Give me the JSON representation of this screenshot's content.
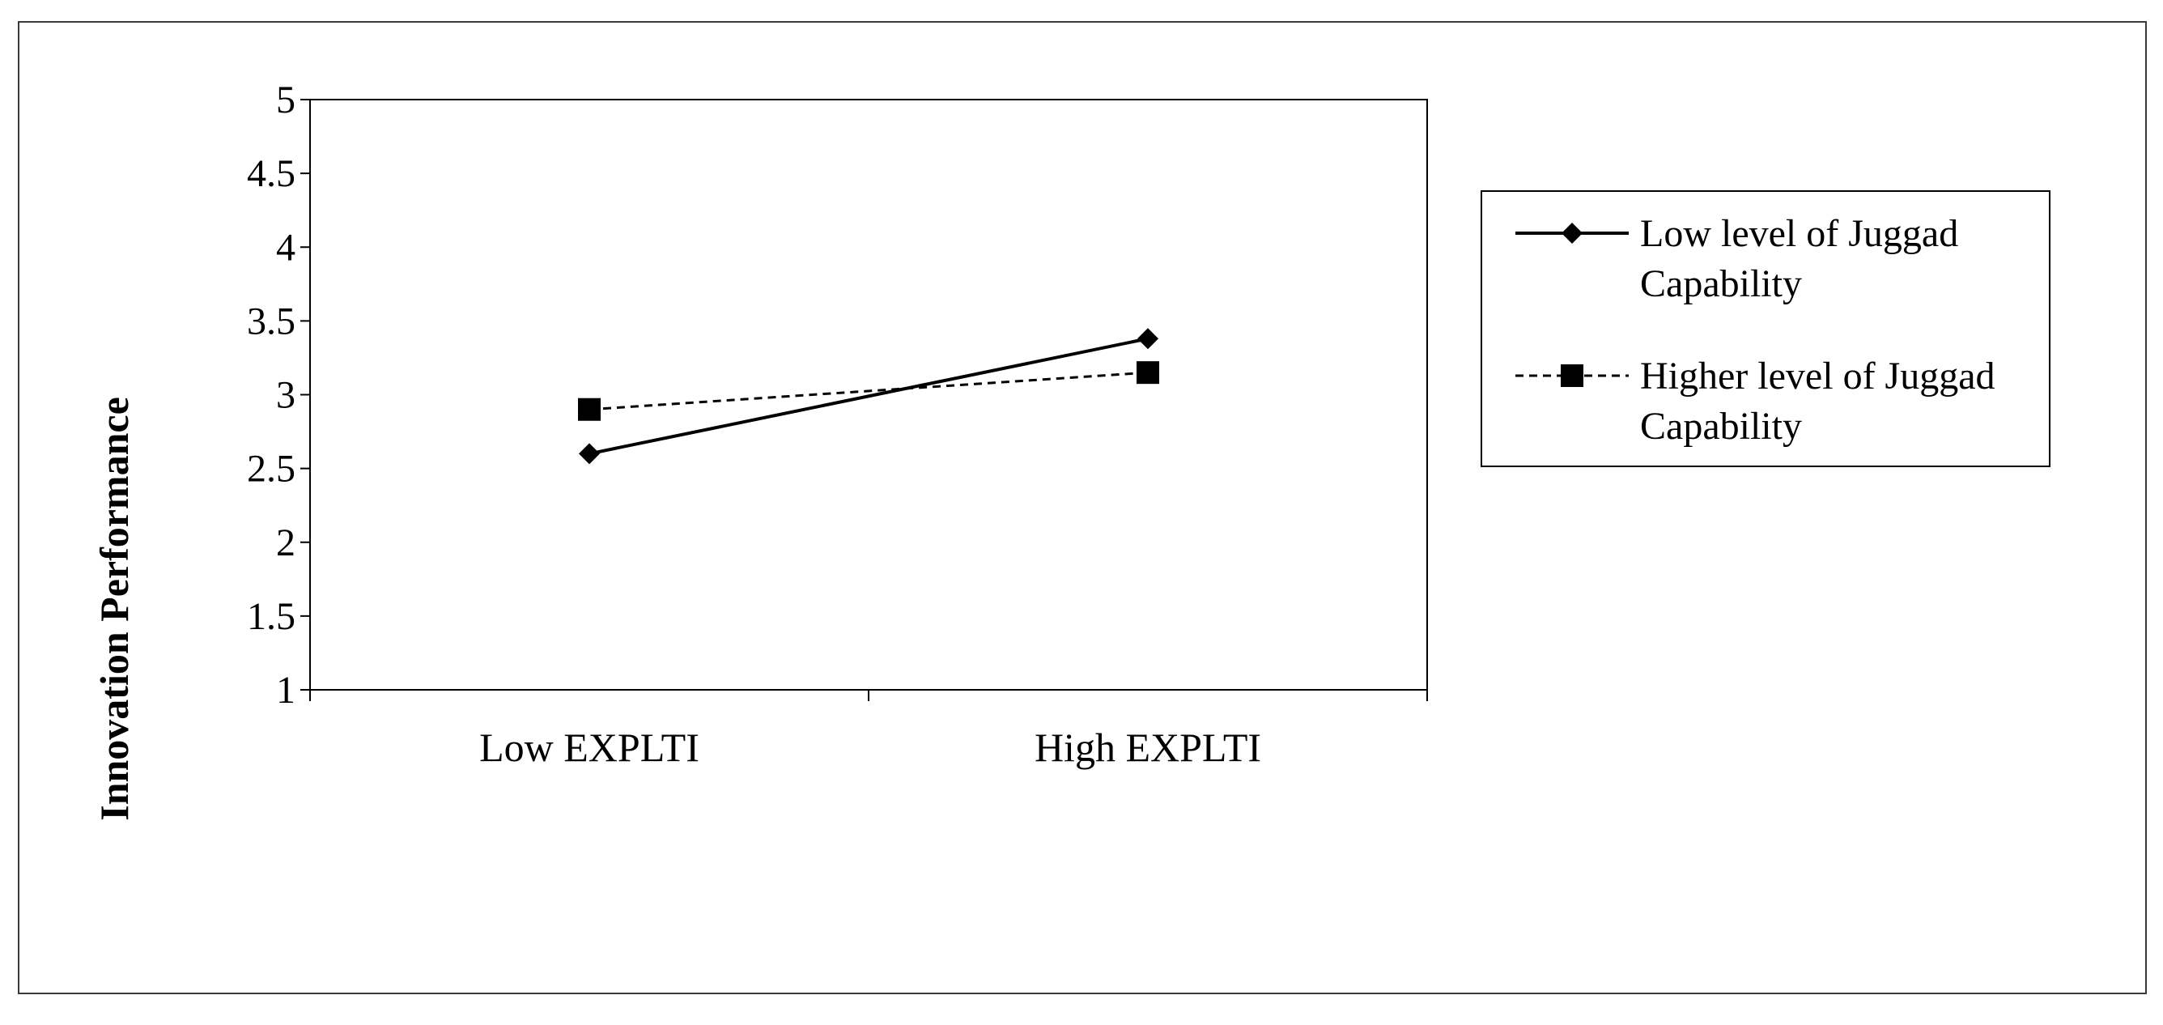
{
  "chart_data": {
    "type": "line",
    "title": "",
    "xlabel": "",
    "ylabel": "Innovation  Performance",
    "categories": [
      "Low EXPLTI",
      "High EXPLTI"
    ],
    "ylim": [
      1,
      5
    ],
    "yticks": [
      "1",
      "1.5",
      "2",
      "2.5",
      "3",
      "3.5",
      "4",
      "4.5",
      "5"
    ],
    "grid": false,
    "legend_position": "right",
    "series": [
      {
        "name_lines": [
          "Low level of Juggad",
          "Capability"
        ],
        "values": [
          2.6,
          3.38
        ],
        "marker": "diamond",
        "line_style": "solid",
        "color": "#000000"
      },
      {
        "name_lines": [
          "Higher level of Juggad",
          "Capability"
        ],
        "values": [
          2.9,
          3.15
        ],
        "marker": "square",
        "line_style": "dashed",
        "color": "#000000"
      }
    ]
  }
}
